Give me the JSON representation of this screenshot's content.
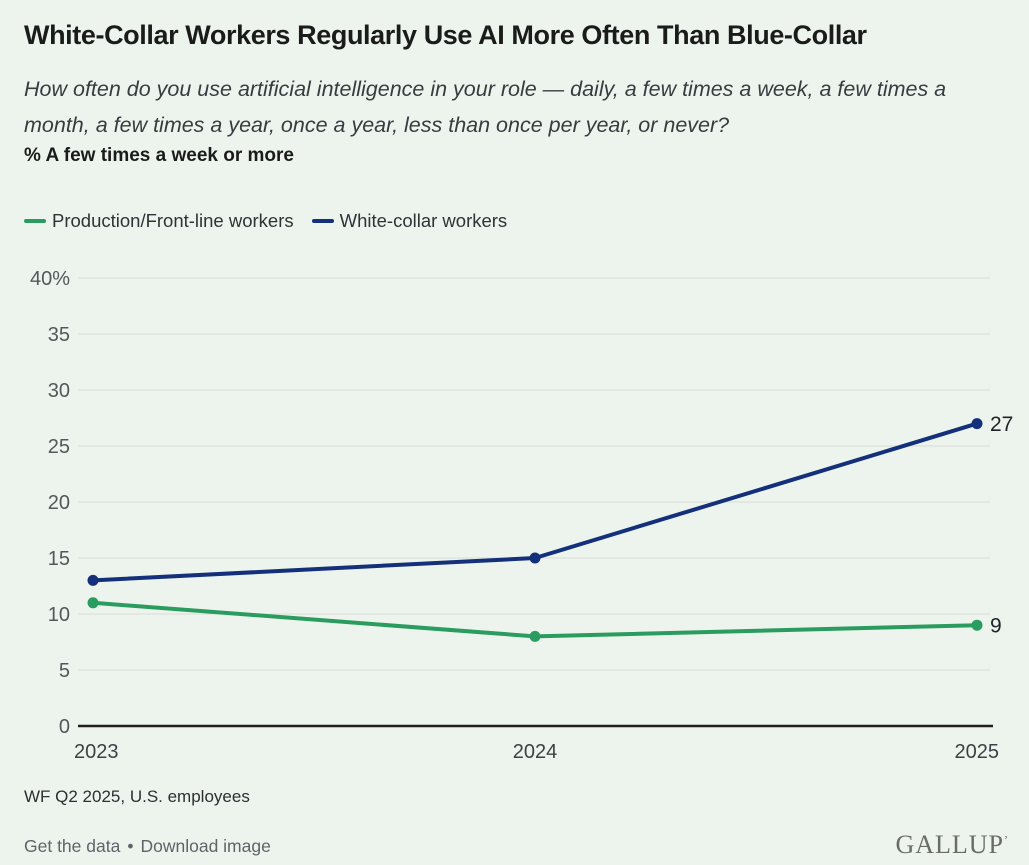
{
  "header": {
    "title": "White-Collar Workers Regularly Use AI More Often Than Blue-Collar",
    "subtitle": "How often do you use artificial intelligence in your role — daily, a few times a week, a few times a month, a few times a year, once a year, less than once per year, or never?",
    "measure_label": "% A few times a week or more"
  },
  "legend": [
    {
      "label": "Production/Front-line workers",
      "color": "#2a9c5f"
    },
    {
      "label": "White-collar workers",
      "color": "#14307a"
    }
  ],
  "chart_data": {
    "type": "line",
    "x": [
      "2023",
      "2024",
      "2025"
    ],
    "series": [
      {
        "name": "Production/Front-line workers",
        "color": "#2a9c5f",
        "values": [
          11,
          8,
          9
        ],
        "end_label": "9"
      },
      {
        "name": "White-collar workers",
        "color": "#14307a",
        "values": [
          13,
          15,
          27
        ],
        "end_label": "27"
      }
    ],
    "ylabel": "",
    "xlabel": "",
    "ylim": [
      0,
      40
    ],
    "ytick_interval": 5,
    "ytick_top_label": "40%",
    "grid": true,
    "legend_position": "top-left"
  },
  "footer": {
    "source": "WF Q2 2025, U.S. employees",
    "links": [
      "Get the data",
      "Download image"
    ],
    "separator": "•",
    "brand": "GALLUP",
    "brand_mark": "’"
  },
  "colors": {
    "background": "#edf4ed",
    "gridline": "#d9ded7",
    "axis_line": "#1f1f1f",
    "y_tick_text": "#53585c",
    "x_tick_text": "#3c4146",
    "value_label_text": "#202327"
  }
}
